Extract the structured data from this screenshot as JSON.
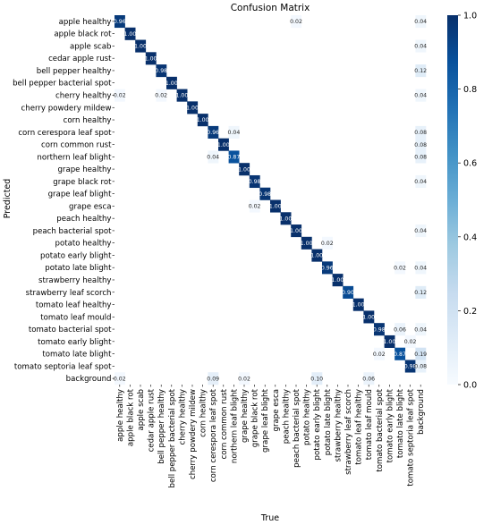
{
  "chart_data": {
    "type": "heatmap",
    "title": "Confusion Matrix",
    "xlabel": "True",
    "ylabel": "Predicted",
    "labels": [
      "apple healthy",
      "apple black rot",
      "apple scab",
      "cedar apple rust",
      "bell pepper healthy",
      "bell pepper bacterial spot",
      "cherry healthy",
      "cherry powdery mildew",
      "corn healthy",
      "corn cerespora leaf spot",
      "corn common rust",
      "northern leaf blight",
      "grape healthy",
      "grape black rot",
      "grape leaf blight",
      "grape esca",
      "peach healthy",
      "peach bacterial spot",
      "potato healthy",
      "potato early blight",
      "potato late blight",
      "strawberry healthy",
      "strawberry leaf scorch",
      "tomato leaf healthy",
      "tomato leaf mould",
      "tomato bacterial spot",
      "tomato early blight",
      "tomato late blight",
      "tomato septoria leaf spot",
      "background"
    ],
    "cells": [
      {
        "row": 0,
        "col": 0,
        "value": 0.96,
        "label": "0.96"
      },
      {
        "row": 0,
        "col": 17,
        "value": 0.02,
        "label": "0.02"
      },
      {
        "row": 0,
        "col": 29,
        "value": 0.04,
        "label": "0.04"
      },
      {
        "row": 1,
        "col": 1,
        "value": 1.0,
        "label": "1.00"
      },
      {
        "row": 2,
        "col": 2,
        "value": 1.0,
        "label": "1.00"
      },
      {
        "row": 2,
        "col": 29,
        "value": 0.04,
        "label": "0.04"
      },
      {
        "row": 3,
        "col": 3,
        "value": 1.0,
        "label": "1.00"
      },
      {
        "row": 4,
        "col": 4,
        "value": 0.98,
        "label": "0.98"
      },
      {
        "row": 4,
        "col": 29,
        "value": 0.12,
        "label": "0.12"
      },
      {
        "row": 5,
        "col": 5,
        "value": 1.0,
        "label": "1.00"
      },
      {
        "row": 6,
        "col": 0,
        "value": 0.02,
        "label": "0.02"
      },
      {
        "row": 6,
        "col": 4,
        "value": 0.02,
        "label": "0.02"
      },
      {
        "row": 6,
        "col": 6,
        "value": 1.0,
        "label": "1.00"
      },
      {
        "row": 6,
        "col": 29,
        "value": 0.04,
        "label": "0.04"
      },
      {
        "row": 7,
        "col": 7,
        "value": 1.0,
        "label": "1.00"
      },
      {
        "row": 8,
        "col": 8,
        "value": 1.0,
        "label": "1.00"
      },
      {
        "row": 9,
        "col": 9,
        "value": 0.96,
        "label": "0.96"
      },
      {
        "row": 9,
        "col": 11,
        "value": 0.04,
        "label": "0.04"
      },
      {
        "row": 9,
        "col": 29,
        "value": 0.08,
        "label": "0.08"
      },
      {
        "row": 10,
        "col": 10,
        "value": 1.0,
        "label": "1.00"
      },
      {
        "row": 10,
        "col": 29,
        "value": 0.08,
        "label": "0.08"
      },
      {
        "row": 11,
        "col": 9,
        "value": 0.04,
        "label": "0.04"
      },
      {
        "row": 11,
        "col": 11,
        "value": 0.87,
        "label": "0.87"
      },
      {
        "row": 11,
        "col": 29,
        "value": 0.08,
        "label": "0.08"
      },
      {
        "row": 12,
        "col": 12,
        "value": 1.0,
        "label": "1.00"
      },
      {
        "row": 13,
        "col": 13,
        "value": 0.98,
        "label": "0.98"
      },
      {
        "row": 13,
        "col": 29,
        "value": 0.04,
        "label": "0.04"
      },
      {
        "row": 14,
        "col": 14,
        "value": 0.98,
        "label": "0.98"
      },
      {
        "row": 15,
        "col": 13,
        "value": 0.02,
        "label": "0.02"
      },
      {
        "row": 15,
        "col": 15,
        "value": 1.0,
        "label": "1.00"
      },
      {
        "row": 16,
        "col": 16,
        "value": 1.0,
        "label": "1.00"
      },
      {
        "row": 17,
        "col": 17,
        "value": 1.0,
        "label": "1.00"
      },
      {
        "row": 17,
        "col": 29,
        "value": 0.04,
        "label": "0.04"
      },
      {
        "row": 18,
        "col": 18,
        "value": 1.0,
        "label": "1.00"
      },
      {
        "row": 18,
        "col": 20,
        "value": 0.02,
        "label": "0.02"
      },
      {
        "row": 19,
        "col": 19,
        "value": 1.0,
        "label": "1.00"
      },
      {
        "row": 20,
        "col": 20,
        "value": 0.96,
        "label": "0.96"
      },
      {
        "row": 20,
        "col": 27,
        "value": 0.02,
        "label": "0.02"
      },
      {
        "row": 20,
        "col": 29,
        "value": 0.04,
        "label": "0.04"
      },
      {
        "row": 21,
        "col": 21,
        "value": 1.0,
        "label": "1.00"
      },
      {
        "row": 22,
        "col": 22,
        "value": 0.9,
        "label": "0.90"
      },
      {
        "row": 22,
        "col": 29,
        "value": 0.12,
        "label": "0.12"
      },
      {
        "row": 23,
        "col": 23,
        "value": 1.0,
        "label": "1.00"
      },
      {
        "row": 24,
        "col": 24,
        "value": 1.0,
        "label": "1.00"
      },
      {
        "row": 25,
        "col": 25,
        "value": 0.98,
        "label": "0.98"
      },
      {
        "row": 25,
        "col": 27,
        "value": 0.06,
        "label": "0.06"
      },
      {
        "row": 25,
        "col": 29,
        "value": 0.04,
        "label": "0.04"
      },
      {
        "row": 26,
        "col": 26,
        "value": 1.0,
        "label": "1.00"
      },
      {
        "row": 26,
        "col": 28,
        "value": 0.02,
        "label": "0.02"
      },
      {
        "row": 27,
        "col": 25,
        "value": 0.02,
        "label": "0.02"
      },
      {
        "row": 27,
        "col": 27,
        "value": 0.87,
        "label": "0.87"
      },
      {
        "row": 27,
        "col": 29,
        "value": 0.19,
        "label": "0.19"
      },
      {
        "row": 28,
        "col": 28,
        "value": 0.98,
        "label": "0.98"
      },
      {
        "row": 28,
        "col": 29,
        "value": 0.08,
        "label": "0.08"
      },
      {
        "row": 29,
        "col": 0,
        "value": 0.02,
        "label": "0.02"
      },
      {
        "row": 29,
        "col": 9,
        "value": 0.09,
        "label": "0.09"
      },
      {
        "row": 29,
        "col": 12,
        "value": 0.02,
        "label": "0.02"
      },
      {
        "row": 29,
        "col": 19,
        "value": 0.1,
        "label": "0.10"
      },
      {
        "row": 29,
        "col": 24,
        "value": 0.06,
        "label": "0.06"
      }
    ],
    "colorbar": {
      "min": 0.0,
      "max": 1.0,
      "ticks": [
        "0.0",
        "0.2",
        "0.4",
        "0.6",
        "0.8",
        "1.0"
      ],
      "colormap": "Blues",
      "color_low": "#f7fbff",
      "color_high": "#08306b"
    }
  }
}
